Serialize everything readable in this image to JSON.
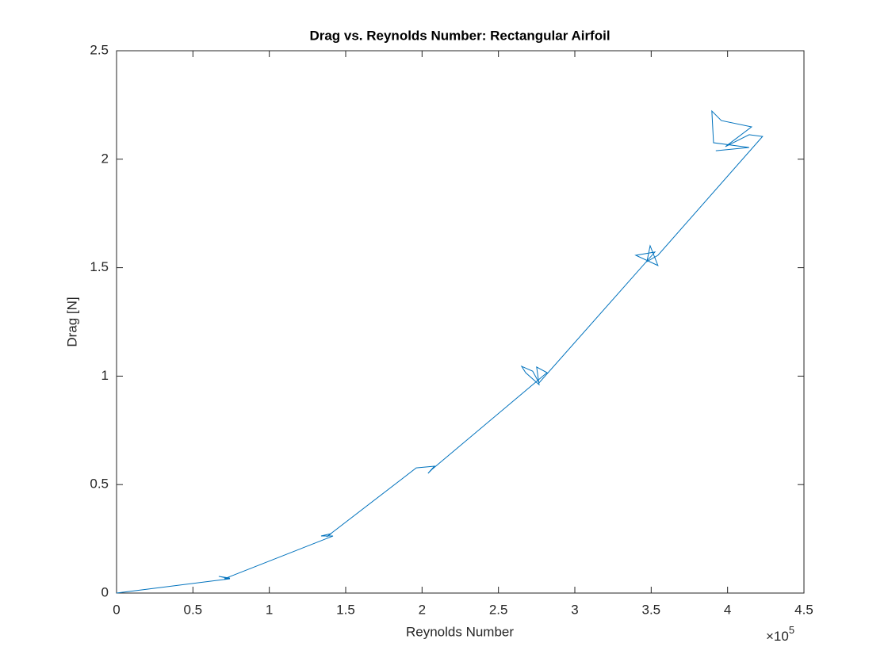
{
  "chart_data": {
    "type": "line",
    "title": "Drag vs. Reynolds Number: Rectangular Airfoil",
    "x_label": "Reynolds Number",
    "y_label": "Drag [N]",
    "x_multiplier_base": "×10",
    "x_multiplier_exponent": "5",
    "xlim": [
      0,
      4.5
    ],
    "ylim": [
      0,
      2.5
    ],
    "xticks": [
      0,
      0.5,
      1,
      1.5,
      2,
      2.5,
      3,
      3.5,
      4,
      4.5
    ],
    "yticks": [
      0,
      0.5,
      1,
      1.5,
      2,
      2.5
    ],
    "grid": false,
    "series": [
      {
        "color": "#0072bd",
        "x": [
          0,
          0.742,
          0.669,
          0.742,
          0.706,
          1.417,
          1.339,
          1.406,
          1.375,
          1.962,
          2.081,
          2.039,
          2.065,
          2.818,
          2.75,
          2.766,
          2.678,
          2.652,
          2.724,
          2.766,
          3.524,
          3.399,
          3.544,
          3.493,
          3.472,
          3.544,
          4.229,
          4.141,
          3.986,
          4.157,
          3.959,
          3.897,
          3.908,
          4.141,
          3.923
        ],
        "values": [
          0,
          0.066,
          0.077,
          0.069,
          0.066,
          0.263,
          0.263,
          0.274,
          0.259,
          0.577,
          0.585,
          0.552,
          0.57,
          1.016,
          1.042,
          0.961,
          1.016,
          1.045,
          1.023,
          0.969,
          1.572,
          1.557,
          1.51,
          1.601,
          1.528,
          1.557,
          2.105,
          2.113,
          2.058,
          2.149,
          2.178,
          2.222,
          2.076,
          2.054,
          2.039
        ]
      }
    ]
  }
}
